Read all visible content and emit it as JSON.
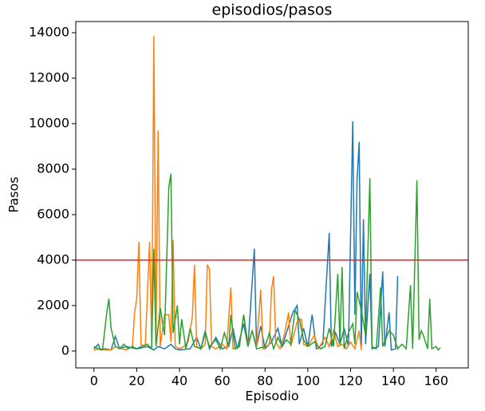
{
  "chart_data": {
    "type": "line",
    "title": "episodios/pasos",
    "x_label": "Episodio",
    "y_label": "Pasos",
    "xlim": [
      -8.5,
      175
    ],
    "ylim": [
      -740,
      14490
    ],
    "xticks": [
      0,
      20,
      40,
      60,
      80,
      100,
      120,
      140,
      160
    ],
    "yticks": [
      0,
      2000,
      4000,
      6000,
      8000,
      10000,
      12000,
      14000
    ],
    "hlines": [
      {
        "value": 4000,
        "color": "#e8262a"
      }
    ],
    "series": [
      {
        "color": "#1f77b4",
        "x": [
          0,
          2,
          3,
          5,
          8,
          10,
          12,
          15,
          20,
          25,
          28,
          30,
          33,
          36,
          38,
          40,
          45,
          48,
          50,
          52,
          54,
          57,
          60,
          63,
          65,
          67,
          70,
          72,
          75,
          76,
          78,
          80,
          83,
          86,
          88,
          90,
          93,
          95,
          96,
          98,
          100,
          102,
          104,
          107,
          110,
          111,
          113,
          115,
          117,
          119,
          121,
          122,
          123,
          124,
          125,
          126,
          127,
          129,
          130,
          133,
          135,
          136,
          138,
          139,
          141,
          142
        ],
        "values": [
          100,
          300,
          50,
          100,
          50,
          650,
          100,
          200,
          100,
          200,
          50,
          200,
          100,
          300,
          100,
          50,
          100,
          600,
          100,
          900,
          100,
          600,
          100,
          200,
          1000,
          100,
          1200,
          200,
          4500,
          200,
          1100,
          100,
          400,
          1000,
          200,
          800,
          1700,
          2000,
          300,
          1000,
          200,
          1600,
          100,
          300,
          5200,
          200,
          800,
          300,
          1000,
          200,
          10100,
          1600,
          7500,
          9200,
          200,
          5800,
          300,
          3400,
          100,
          200,
          3500,
          200,
          1700,
          50,
          100,
          3300
        ]
      },
      {
        "color": "#ff7f0e",
        "x": [
          0,
          3,
          5,
          8,
          10,
          13,
          15,
          18,
          19,
          20,
          21,
          22,
          24,
          26,
          27,
          28,
          29,
          30,
          31,
          33,
          35,
          36,
          37,
          38,
          40,
          42,
          44,
          46,
          47,
          48,
          50,
          52,
          53,
          54,
          55,
          57,
          60,
          62,
          64,
          65,
          68,
          70,
          72,
          74,
          76,
          78,
          79,
          82,
          83,
          84,
          85,
          87,
          89,
          91,
          92,
          94,
          95,
          97,
          98,
          100,
          103,
          105,
          108,
          110,
          112,
          114,
          116,
          118,
          120,
          122,
          124,
          125
        ],
        "values": [
          50,
          100,
          50,
          50,
          200,
          100,
          50,
          200,
          1700,
          2300,
          4800,
          300,
          200,
          4800,
          200,
          13850,
          300,
          9700,
          200,
          1600,
          1600,
          400,
          4900,
          200,
          100,
          200,
          400,
          1500,
          3800,
          200,
          100,
          300,
          3800,
          3600,
          200,
          100,
          300,
          100,
          2800,
          100,
          200,
          1600,
          300,
          900,
          200,
          2700,
          100,
          300,
          2700,
          3300,
          400,
          100,
          700,
          1700,
          200,
          900,
          1300,
          1400,
          300,
          200,
          700,
          100,
          600,
          200,
          900,
          200,
          300,
          100,
          400,
          100,
          900,
          50
        ]
      },
      {
        "color": "#2ca02c",
        "x": [
          0,
          2,
          4,
          6,
          7,
          8,
          10,
          12,
          14,
          16,
          18,
          20,
          22,
          25,
          27,
          28,
          29,
          31,
          33,
          35,
          36,
          37,
          39,
          40,
          41,
          43,
          45,
          47,
          50,
          52,
          54,
          57,
          59,
          61,
          63,
          64,
          66,
          68,
          70,
          72,
          74,
          76,
          80,
          82,
          84,
          86,
          88,
          90,
          92,
          94,
          96,
          98,
          100,
          103,
          106,
          108,
          110,
          112,
          114,
          115,
          116,
          117,
          119,
          121,
          122,
          123,
          125,
          127,
          129,
          130,
          132,
          134,
          135,
          138,
          140,
          142,
          144,
          146,
          148,
          149,
          151,
          152,
          153,
          154,
          156,
          157,
          158,
          160,
          161,
          162
        ],
        "values": [
          200,
          100,
          50,
          1700,
          2300,
          1000,
          200,
          100,
          300,
          100,
          200,
          100,
          200,
          300,
          100,
          4500,
          200,
          1900,
          700,
          7200,
          7800,
          800,
          2000,
          300,
          1400,
          100,
          1000,
          200,
          100,
          800,
          200,
          500,
          100,
          800,
          200,
          1600,
          100,
          200,
          1600,
          200,
          900,
          100,
          200,
          800,
          100,
          600,
          200,
          500,
          300,
          1800,
          1400,
          500,
          200,
          400,
          100,
          200,
          1000,
          200,
          3400,
          300,
          3700,
          100,
          800,
          1200,
          300,
          2600,
          1800,
          700,
          7600,
          200,
          100,
          2800,
          200,
          900,
          700,
          100,
          300,
          100,
          2900,
          100,
          7500,
          500,
          900,
          700,
          100,
          2300,
          100,
          200,
          50,
          150
        ]
      }
    ]
  }
}
